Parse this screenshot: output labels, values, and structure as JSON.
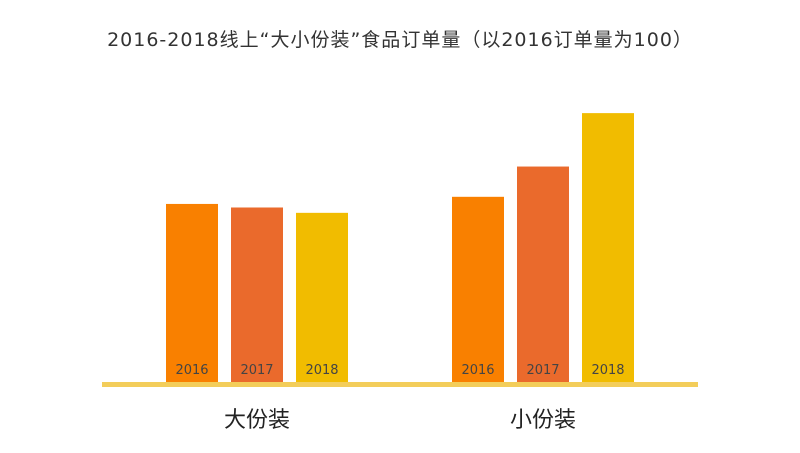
{
  "chart_data": {
    "type": "bar",
    "title": "2016-2018线上“大小份装”食品订单量（以2016订单量为100）",
    "groups": [
      {
        "label": "大份装",
        "bars": [
          {
            "category": "2016",
            "value": 100
          },
          {
            "category": "2017",
            "value": 98
          },
          {
            "category": "2018",
            "value": 95
          }
        ]
      },
      {
        "label": "小份装",
        "bars": [
          {
            "category": "2016",
            "value": 104
          },
          {
            "category": "2017",
            "value": 121
          },
          {
            "category": "2018",
            "value": 151
          }
        ]
      }
    ],
    "ylim": [
      0,
      155
    ],
    "grid": false,
    "legend": "none",
    "colors": {
      "2016": "#F98000",
      "2017": "#EA6A2C",
      "2018": "#F1BC00",
      "baseline": "#F3CD5A"
    }
  }
}
